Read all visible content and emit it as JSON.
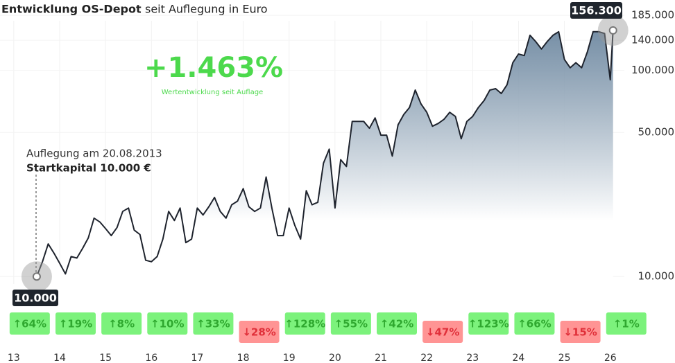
{
  "chart_data": {
    "type": "line",
    "title": "Entwicklung OS-Depot",
    "title_suffix": "seit Auflegung in Euro",
    "headline": "+1.463%",
    "headline_caption": "Wertentwicklung seit Auflage",
    "annotation": [
      "Auflegung am 20.08.2013",
      "Startkapital 10.000 €"
    ],
    "x": [
      13.5,
      13.625,
      13.75,
      13.875,
      14,
      14.125,
      14.25,
      14.375,
      14.5,
      14.625,
      14.75,
      14.875,
      15,
      15.125,
      15.25,
      15.375,
      15.5,
      15.625,
      15.75,
      15.875,
      16,
      16.125,
      16.25,
      16.375,
      16.5,
      16.625,
      16.75,
      16.875,
      17,
      17.125,
      17.25,
      17.375,
      17.5,
      17.625,
      17.75,
      17.875,
      18,
      18.125,
      18.25,
      18.375,
      18.5,
      18.625,
      18.75,
      18.875,
      19,
      19.125,
      19.25,
      19.375,
      19.5,
      19.625,
      19.75,
      19.875,
      20,
      20.125,
      20.25,
      20.375,
      20.5,
      20.625,
      20.75,
      20.875,
      21,
      21.125,
      21.25,
      21.375,
      21.5,
      21.625,
      21.75,
      21.875,
      22,
      22.125,
      22.25,
      22.375,
      22.5,
      22.625,
      22.75,
      22.875,
      23,
      23.125,
      23.25,
      23.375,
      23.5,
      23.625,
      23.75,
      23.875,
      24,
      24.125,
      24.25,
      24.375,
      24.5,
      24.625,
      24.75,
      24.875,
      25,
      25.125,
      25.25,
      25.375,
      25.5,
      25.625,
      25.75,
      25.875,
      26,
      26.06
    ],
    "series": [
      {
        "color": "#1e232d",
        "area_color": "#5f7c97",
        "values": [
          10000,
          11800,
          14400,
          13000,
          11600,
          10300,
          12500,
          12300,
          13700,
          15400,
          19200,
          18400,
          17100,
          15800,
          17300,
          20700,
          21500,
          16800,
          16000,
          12000,
          11800,
          12500,
          15200,
          20700,
          18700,
          21500,
          14600,
          15200,
          21500,
          19900,
          21800,
          24200,
          20700,
          19200,
          22300,
          23200,
          26700,
          21800,
          20700,
          21500,
          30400,
          21500,
          15800,
          15800,
          21500,
          17700,
          15200,
          26100,
          22300,
          22900,
          35500,
          41500,
          21500,
          36900,
          34200,
          56600,
          56600,
          56600,
          52400,
          58800,
          48500,
          48500,
          38400,
          54500,
          61200,
          66100,
          80300,
          68700,
          62600,
          53600,
          55300,
          57900,
          62600,
          59800,
          46600,
          56600,
          59800,
          66100,
          71400,
          80300,
          81500,
          77200,
          85200,
          109000,
          120000,
          118000,
          148000,
          138000,
          127000,
          138000,
          148000,
          154000,
          113000,
          103000,
          109000,
          103000,
          123000,
          154000,
          154000,
          151000,
          90000,
          156300
        ]
      }
    ],
    "start_label": "10.000",
    "end_label": "156.300",
    "xlim": [
      12.7,
      27.41
    ],
    "xticks": [
      13,
      14,
      15,
      16,
      17,
      18,
      19,
      20,
      21,
      22,
      23,
      24,
      25,
      26
    ],
    "ylim": [
      9200,
      200000
    ],
    "ylog": true,
    "yticks": [
      {
        "value": 10000,
        "label": "10.000"
      },
      {
        "value": 50000,
        "label": "50.000"
      },
      {
        "value": 100000,
        "label": "100.000"
      },
      {
        "value": 140000,
        "label": "140.000"
      },
      {
        "value": 185000,
        "label": "185.000"
      }
    ],
    "grid": true,
    "annual_returns": {
      "values": [
        64,
        19,
        8,
        10,
        33,
        -28,
        128,
        55,
        42,
        -47,
        123,
        66,
        -15,
        1
      ],
      "value_labels": [
        "↑64%",
        "↑19%",
        "↑8%",
        "↑10%",
        "↑33%",
        "↓28%",
        "↑128%",
        "↑55%",
        "↑42%",
        "↓47%",
        "↑123%",
        "↑66%",
        "↓15%",
        "↑1%"
      ],
      "up_color": "#7cf27c",
      "down_color": "#ff9494"
    }
  }
}
